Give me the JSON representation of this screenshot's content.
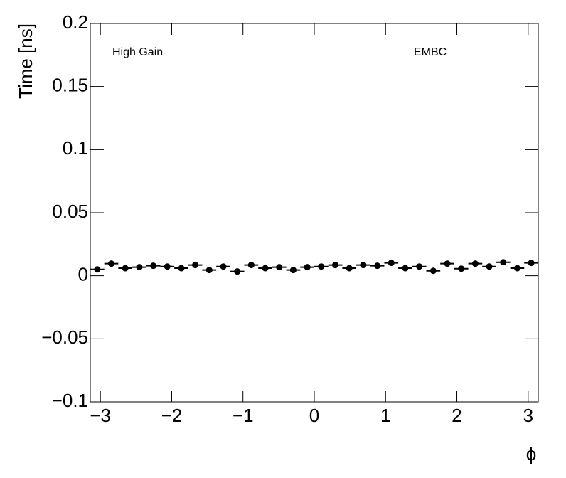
{
  "chart_data": {
    "type": "errorbar",
    "xlabel": "ϕ",
    "ylabel": "Time [ns]",
    "annotations": [
      "High Gain",
      "EMBC"
    ],
    "color": "#000000",
    "x": [
      -3.043,
      -2.847,
      -2.651,
      -2.454,
      -2.258,
      -2.062,
      -1.865,
      -1.669,
      -1.473,
      -1.276,
      -1.08,
      -0.884,
      -0.687,
      -0.491,
      -0.295,
      -0.098,
      0.098,
      0.295,
      0.491,
      0.687,
      0.884,
      1.08,
      1.276,
      1.473,
      1.669,
      1.865,
      2.062,
      2.258,
      2.454,
      2.651,
      2.847,
      3.043
    ],
    "values": [
      0.005,
      0.0096,
      0.006,
      0.0068,
      0.0079,
      0.0073,
      0.006,
      0.0085,
      0.0045,
      0.0073,
      0.0034,
      0.0085,
      0.006,
      0.0068,
      0.0045,
      0.0068,
      0.0073,
      0.0085,
      0.006,
      0.0085,
      0.0079,
      0.0102,
      0.006,
      0.0073,
      0.0039,
      0.0096,
      0.0056,
      0.0096,
      0.0073,
      0.0107,
      0.006,
      0.0102
    ],
    "xlim": [
      -3.1416,
      3.1416
    ],
    "ylim": [
      -0.1,
      0.2
    ],
    "xticks": [
      {
        "value": -3,
        "label": "−3"
      },
      {
        "value": -2,
        "label": "−2"
      },
      {
        "value": -1,
        "label": "−1"
      },
      0,
      1,
      2,
      3
    ],
    "yticks": [
      {
        "value": -0.1,
        "label": "−0.1"
      },
      {
        "value": -0.05,
        "label": "−0.05"
      },
      0,
      0.05,
      0.1,
      0.15,
      0.2
    ],
    "grid": false
  }
}
